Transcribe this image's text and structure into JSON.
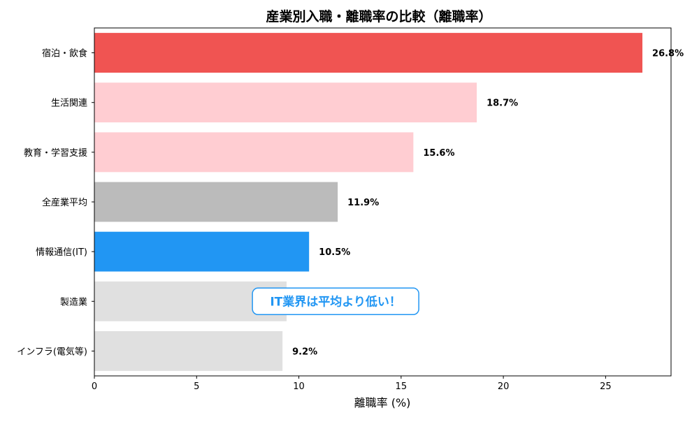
{
  "chart_data": {
    "type": "bar",
    "orientation": "horizontal",
    "title": "産業別入職・離職率の比較（離職率）",
    "xlabel": "離職率 (%)",
    "ylabel": "",
    "xlim": [
      0,
      28.2
    ],
    "xticks": [
      0,
      5,
      10,
      15,
      20,
      25
    ],
    "grid": false,
    "legend": "none",
    "categories": [
      "宿泊・飲食",
      "生活関連",
      "教育・学習支援",
      "全産業平均",
      "情報通信(IT)",
      "製造業",
      "インフラ(電気等)"
    ],
    "values": [
      26.8,
      18.7,
      15.6,
      11.9,
      10.5,
      9.4,
      9.2
    ],
    "value_labels": [
      "26.8%",
      "18.7%",
      "15.6%",
      "11.9%",
      "10.5%",
      "",
      "9.2%"
    ],
    "colors": [
      "#F05452",
      "#FFCDD2",
      "#FFCDD2",
      "#BBBBBB",
      "#2196F3",
      "#E0E0E0",
      "#E0E0E0"
    ],
    "annotation": {
      "text": "IT業界は平均より低い！",
      "color": "#2196F3",
      "x": 11.9,
      "category": "製造業"
    }
  }
}
